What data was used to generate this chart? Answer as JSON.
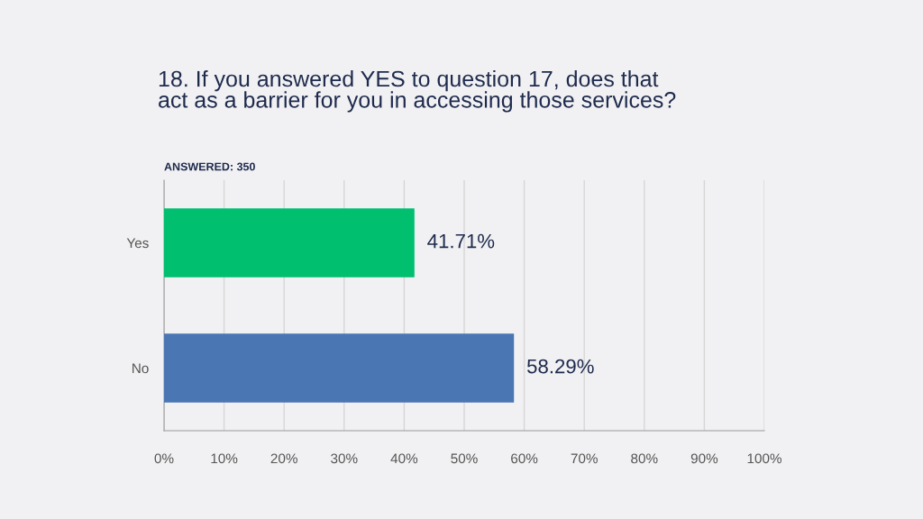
{
  "chart_data": {
    "type": "bar",
    "orientation": "horizontal",
    "title": "18. If you answered YES to question 17, does that\nact as a barrier for you in accessing those services?",
    "annotations": [
      "ANSWERED: 350"
    ],
    "categories": [
      "Yes",
      "No"
    ],
    "values": [
      41.71,
      58.29
    ],
    "colors": [
      "#00bf6f",
      "#4a76b4"
    ],
    "value_labels": [
      "41.71%",
      "58.29%"
    ],
    "xlim": [
      0,
      100
    ],
    "xticks": [
      {
        "value": 0,
        "label": "0%"
      },
      {
        "value": 10,
        "label": "10%"
      },
      {
        "value": 20,
        "label": "20%"
      },
      {
        "value": 30,
        "label": "30%"
      },
      {
        "value": 40,
        "label": "40%"
      },
      {
        "value": 50,
        "label": "50%"
      },
      {
        "value": 60,
        "label": "60%"
      },
      {
        "value": 70,
        "label": "70%"
      },
      {
        "value": 80,
        "label": "80%"
      },
      {
        "value": 90,
        "label": "90%"
      },
      {
        "value": 100,
        "label": "100%"
      }
    ],
    "grid": "x",
    "legend": false
  }
}
